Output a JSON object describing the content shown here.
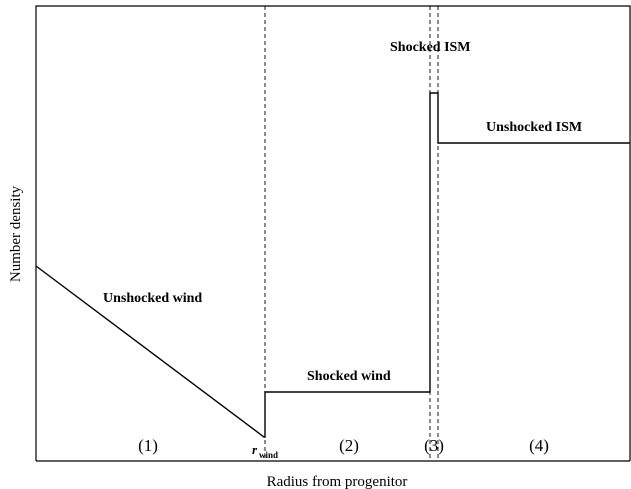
{
  "axes": {
    "xlabel": "Radius from progenitor",
    "ylabel": "Number density"
  },
  "regions": {
    "unshocked_wind": "Unshocked wind",
    "shocked_wind": "Shocked wind",
    "shocked_ism": "Shocked ISM",
    "unshocked_ism": "Unshocked ISM"
  },
  "region_numbers": [
    "(1)",
    "(2)",
    "(3)",
    "(4)"
  ],
  "r_wind": {
    "symbol": "r",
    "subscript": "wind"
  }
}
